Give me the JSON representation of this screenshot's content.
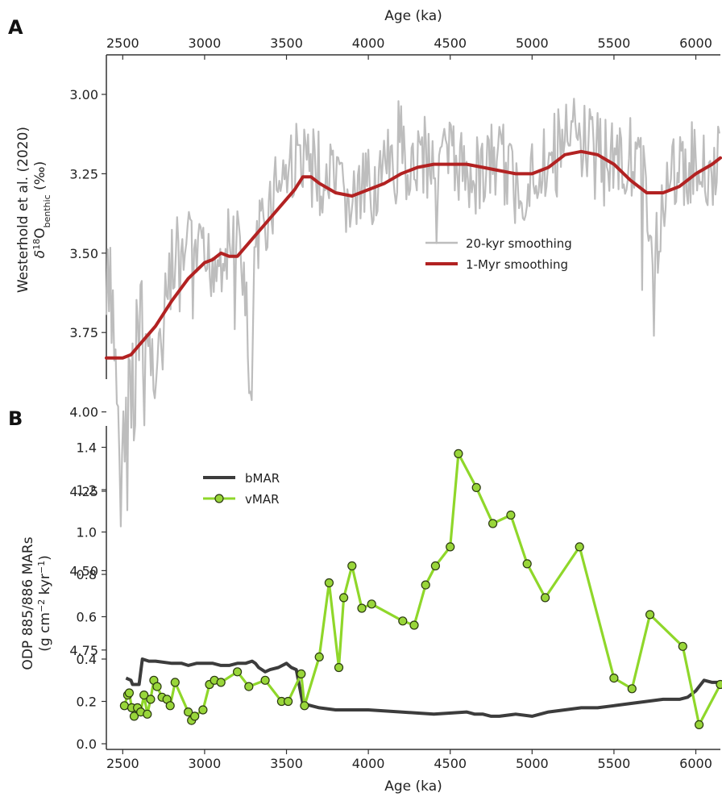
{
  "panels": {
    "A": {
      "letter": "A"
    },
    "B": {
      "letter": "B"
    }
  },
  "colors": {
    "grey_line": "#bdbdbd",
    "red_line": "#b22222",
    "bmar_line": "#3c3c3c",
    "vmar_line": "#8fd72a",
    "vmar_marker_fill": "#99d63a",
    "vmar_marker_edge": "#2b3a10",
    "axis": "#333333"
  },
  "chart_data": [
    {
      "panel": "A",
      "type": "line",
      "xlabel": "Age (ka)",
      "ylabel_line1": "Westerhold et al. (2020)",
      "ylabel_line2_parts": [
        "δ",
        "18",
        "O",
        "benthic",
        " (‰)"
      ],
      "xlim": [
        2400,
        6150
      ],
      "ylim": [
        4.8,
        2.85
      ],
      "y_inverted": true,
      "x_axis_position": "top",
      "xticks": [
        2500,
        3000,
        3500,
        4000,
        4500,
        5000,
        5500,
        6000
      ],
      "yticks": [
        3.0,
        3.25,
        3.5,
        3.75,
        4.0,
        4.25,
        4.5,
        4.75
      ],
      "ytick_labels": [
        "3.00",
        "3.25",
        "3.50",
        "3.75",
        "4.00",
        "4.25",
        "4.50",
        "4.75"
      ],
      "legend_position": "center-right",
      "series": [
        {
          "name": "20-kyr smoothing",
          "style": "noisy",
          "x": [
            2400,
            2450,
            2500,
            2550,
            2600,
            2650,
            2700,
            2750,
            2800,
            2850,
            2900,
            2950,
            3000,
            3100,
            3200,
            3250,
            3280,
            3300,
            3350,
            3400,
            3450,
            3500,
            3550,
            3600,
            3650,
            3700,
            3800,
            3900,
            4000,
            4100,
            4200,
            4300,
            4400,
            4500,
            4600,
            4700,
            4800,
            4900,
            5000,
            5100,
            5200,
            5300,
            5400,
            5500,
            5600,
            5700,
            5750,
            5800,
            5900,
            6000,
            6100,
            6150
          ],
          "y": [
            3.7,
            3.75,
            4.2,
            3.9,
            3.75,
            3.8,
            3.85,
            3.7,
            3.55,
            3.6,
            3.5,
            3.5,
            3.55,
            3.5,
            3.45,
            3.6,
            4.1,
            3.6,
            3.4,
            3.35,
            3.25,
            3.25,
            3.2,
            3.2,
            3.2,
            3.25,
            3.3,
            3.35,
            3.3,
            3.25,
            3.2,
            3.2,
            3.2,
            3.2,
            3.25,
            3.25,
            3.2,
            3.3,
            3.25,
            3.2,
            3.15,
            3.15,
            3.15,
            3.2,
            3.2,
            3.3,
            3.6,
            3.3,
            3.25,
            3.2,
            3.25,
            3.2
          ],
          "noise_amplitude": 0.13
        },
        {
          "name": "1-Myr smoothing",
          "x": [
            2400,
            2500,
            2550,
            2600,
            2700,
            2800,
            2900,
            3000,
            3050,
            3100,
            3150,
            3200,
            3300,
            3400,
            3500,
            3550,
            3600,
            3650,
            3700,
            3800,
            3900,
            4000,
            4100,
            4200,
            4300,
            4400,
            4500,
            4600,
            4700,
            4800,
            4900,
            5000,
            5100,
            5150,
            5200,
            5300,
            5400,
            5500,
            5600,
            5700,
            5800,
            5900,
            6000,
            6100,
            6150
          ],
          "y": [
            3.83,
            3.83,
            3.82,
            3.79,
            3.73,
            3.65,
            3.58,
            3.53,
            3.52,
            3.5,
            3.51,
            3.51,
            3.45,
            3.39,
            3.33,
            3.3,
            3.26,
            3.26,
            3.28,
            3.31,
            3.32,
            3.3,
            3.28,
            3.25,
            3.23,
            3.22,
            3.22,
            3.22,
            3.23,
            3.24,
            3.25,
            3.25,
            3.23,
            3.21,
            3.19,
            3.18,
            3.19,
            3.22,
            3.27,
            3.31,
            3.31,
            3.29,
            3.25,
            3.22,
            3.2
          ]
        }
      ]
    },
    {
      "panel": "B",
      "type": "line",
      "xlabel": "Age (ka)",
      "ylabel_line1": "ODP 885/886 MARs",
      "ylabel_line2_parts": [
        "(g cm",
        "−2",
        " kyr",
        "−1",
        ")"
      ],
      "xlim": [
        2400,
        6150
      ],
      "ylim": [
        0.0,
        1.5
      ],
      "xticks": [
        2500,
        3000,
        3500,
        4000,
        4500,
        5000,
        5500,
        6000
      ],
      "yticks": [
        0.0,
        0.2,
        0.4,
        0.6,
        0.8,
        1.0,
        1.2,
        1.4
      ],
      "ytick_labels": [
        "0.0",
        "0.2",
        "0.4",
        "0.6",
        "0.8",
        "1.0",
        "1.2",
        "1.4"
      ],
      "legend_position": "upper-left",
      "series": [
        {
          "name": "bMAR",
          "x": [
            2520,
            2550,
            2560,
            2600,
            2620,
            2660,
            2700,
            2800,
            2860,
            2900,
            2950,
            3000,
            3050,
            3100,
            3150,
            3200,
            3250,
            3290,
            3310,
            3330,
            3370,
            3400,
            3450,
            3500,
            3530,
            3560,
            3600,
            3650,
            3700,
            3800,
            4000,
            4200,
            4400,
            4600,
            4650,
            4700,
            4750,
            4800,
            4900,
            5000,
            5100,
            5200,
            5300,
            5400,
            5500,
            5600,
            5700,
            5800,
            5900,
            5950,
            6000,
            6050,
            6100,
            6150
          ],
          "y": [
            0.31,
            0.3,
            0.28,
            0.28,
            0.4,
            0.39,
            0.39,
            0.38,
            0.38,
            0.37,
            0.38,
            0.38,
            0.38,
            0.37,
            0.37,
            0.38,
            0.38,
            0.39,
            0.38,
            0.36,
            0.34,
            0.35,
            0.36,
            0.38,
            0.36,
            0.35,
            0.19,
            0.18,
            0.17,
            0.16,
            0.16,
            0.15,
            0.14,
            0.15,
            0.14,
            0.14,
            0.13,
            0.13,
            0.14,
            0.13,
            0.15,
            0.16,
            0.17,
            0.17,
            0.18,
            0.19,
            0.2,
            0.21,
            0.21,
            0.22,
            0.25,
            0.3,
            0.29,
            0.29
          ]
        },
        {
          "name": "vMAR",
          "markers": true,
          "x": [
            2510,
            2530,
            2540,
            2555,
            2570,
            2590,
            2610,
            2630,
            2650,
            2670,
            2690,
            2710,
            2740,
            2770,
            2790,
            2820,
            2900,
            2920,
            2940,
            2990,
            3030,
            3060,
            3100,
            3200,
            3270,
            3370,
            3470,
            3510,
            3590,
            3610,
            3700,
            3760,
            3820,
            3850,
            3900,
            3960,
            4020,
            4210,
            4280,
            4350,
            4410,
            4500,
            4550,
            4660,
            4760,
            4870,
            4970,
            5080,
            5290,
            5500,
            5610,
            5720,
            5920,
            6020,
            6150
          ],
          "y": [
            0.18,
            0.23,
            0.24,
            0.17,
            0.13,
            0.17,
            0.15,
            0.23,
            0.14,
            0.21,
            0.3,
            0.27,
            0.22,
            0.21,
            0.18,
            0.29,
            0.15,
            0.11,
            0.13,
            0.16,
            0.28,
            0.3,
            0.29,
            0.34,
            0.27,
            0.3,
            0.2,
            0.2,
            0.33,
            0.18,
            0.41,
            0.76,
            0.36,
            0.69,
            0.84,
            0.64,
            0.66,
            0.58,
            0.56,
            0.75,
            0.84,
            0.93,
            1.37,
            1.21,
            1.04,
            1.08,
            0.85,
            0.69,
            0.93,
            0.31,
            0.26,
            0.61,
            0.46,
            0.09,
            0.28
          ]
        }
      ]
    }
  ]
}
